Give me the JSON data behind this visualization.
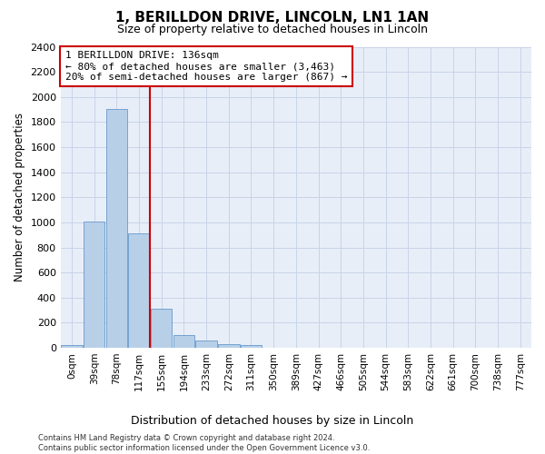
{
  "title": "1, BERILLDON DRIVE, LINCOLN, LN1 1AN",
  "subtitle": "Size of property relative to detached houses in Lincoln",
  "xlabel": "Distribution of detached houses by size in Lincoln",
  "ylabel": "Number of detached properties",
  "bar_categories": [
    "0sqm",
    "39sqm",
    "78sqm",
    "117sqm",
    "155sqm",
    "194sqm",
    "233sqm",
    "272sqm",
    "311sqm",
    "350sqm",
    "389sqm",
    "427sqm",
    "466sqm",
    "505sqm",
    "544sqm",
    "583sqm",
    "622sqm",
    "661sqm",
    "700sqm",
    "738sqm",
    "777sqm"
  ],
  "bar_values": [
    20,
    1010,
    1905,
    915,
    310,
    105,
    55,
    30,
    20,
    0,
    0,
    0,
    0,
    0,
    0,
    0,
    0,
    0,
    0,
    0,
    0
  ],
  "bar_color": "#b8cfe8",
  "bar_edge_color": "#6699cc",
  "vline_x": 3.5,
  "vline_color": "#cc0000",
  "annotation_lines": [
    "1 BERILLDON DRIVE: 136sqm",
    "← 80% of detached houses are smaller (3,463)",
    "20% of semi-detached houses are larger (867) →"
  ],
  "annotation_box_color": "#cc0000",
  "ylim": [
    0,
    2400
  ],
  "yticks": [
    0,
    200,
    400,
    600,
    800,
    1000,
    1200,
    1400,
    1600,
    1800,
    2000,
    2200,
    2400
  ],
  "grid_color": "#c8d4e8",
  "bg_color": "#e8eef8",
  "footer": "Contains HM Land Registry data © Crown copyright and database right 2024.\nContains public sector information licensed under the Open Government Licence v3.0.",
  "title_fontsize": 11,
  "subtitle_fontsize": 9,
  "xlabel_fontsize": 9,
  "ylabel_fontsize": 8.5,
  "annotation_fontsize": 8,
  "tick_fontsize": 7.5,
  "ytick_fontsize": 8,
  "footer_fontsize": 6
}
